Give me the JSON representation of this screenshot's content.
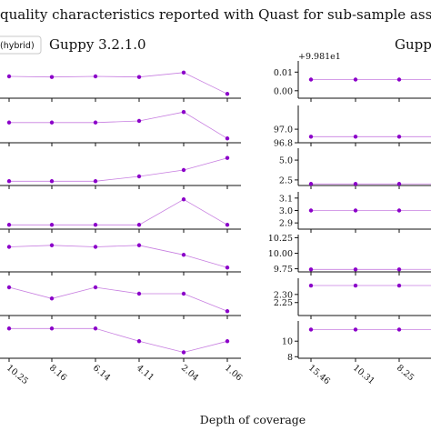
{
  "chart_data": {
    "type": "line",
    "title": "quality characteristics reported with Quast for sub-sample assem",
    "xlabel": "Depth of coverage",
    "legend": {
      "label": "(hybrid)",
      "placement": "top-left"
    },
    "colors": {
      "line": "#c77ee0",
      "marker": "#8b00c9",
      "axis": "#111111",
      "background": "#ffffff"
    },
    "panels": [
      {
        "title": "Guppy 3.2.1.0",
        "x_ticks": [
          "10.25",
          "8.16",
          "6.14",
          "4.11",
          "2.04",
          "1.06"
        ],
        "rows": [
          {
            "values": [
              0.6,
              0.58,
              0.6,
              0.58,
              0.72,
              0.05
            ],
            "y_ticks": []
          },
          {
            "values": [
              0.55,
              0.55,
              0.55,
              0.6,
              0.88,
              0.05
            ],
            "y_ticks": []
          },
          {
            "values": [
              0.05,
              0.05,
              0.05,
              0.2,
              0.4,
              0.78
            ],
            "y_ticks": []
          },
          {
            "values": [
              0.05,
              0.05,
              0.05,
              0.05,
              0.85,
              0.05
            ],
            "y_ticks": []
          },
          {
            "values": [
              0.7,
              0.75,
              0.7,
              0.75,
              0.45,
              0.05
            ],
            "y_ticks": []
          },
          {
            "values": [
              0.8,
              0.45,
              0.8,
              0.6,
              0.6,
              0.05
            ],
            "y_ticks": []
          },
          {
            "values": [
              0.85,
              0.85,
              0.85,
              0.45,
              0.1,
              0.45
            ],
            "y_ticks": []
          }
        ]
      },
      {
        "title": "Gupp",
        "x_ticks": [
          "15.46",
          "10.31",
          "8.25"
        ],
        "rows": [
          {
            "offset": "+9.981e1",
            "ylim": [
              -0.004,
              0.016
            ],
            "values": [
              0.006,
              0.006,
              0.006
            ],
            "y_ticks": [
              {
                "v": 0.01,
                "label": "0.01"
              },
              {
                "v": 0.0,
                "label": "0.00"
              }
            ]
          },
          {
            "ylim": [
              96.8,
              97.35
            ],
            "values": [
              96.89,
              96.89,
              96.89
            ],
            "y_ticks": [
              {
                "v": 97.0,
                "label": "97.0"
              },
              {
                "v": 96.8,
                "label": "96.8"
              }
            ]
          },
          {
            "ylim": [
              1.8,
              6.5
            ],
            "values": [
              2.0,
              2.0,
              2.0
            ],
            "y_ticks": [
              {
                "v": 5.0,
                "label": "5.0"
              },
              {
                "v": 2.5,
                "label": "2.5"
              }
            ]
          },
          {
            "ylim": [
              2.85,
              3.15
            ],
            "values": [
              3.0,
              3.0,
              3.0
            ],
            "y_ticks": [
              {
                "v": 3.1,
                "label": "3.1"
              },
              {
                "v": 3.0,
                "label": "3.0"
              },
              {
                "v": 2.9,
                "label": "2.9"
              }
            ]
          },
          {
            "ylim": [
              9.7,
              10.3
            ],
            "values": [
              9.74,
              9.74,
              9.74
            ],
            "y_ticks": [
              {
                "v": 10.25,
                "label": "10.25"
              },
              {
                "v": 10.0,
                "label": "10.00"
              },
              {
                "v": 9.75,
                "label": "9.75"
              }
            ]
          },
          {
            "ylim": [
              2.17,
              2.4
            ],
            "values": [
              2.355,
              2.355,
              2.355
            ],
            "y_ticks": [
              {
                "v": 2.3,
                "label": "2.30"
              },
              {
                "v": 2.25,
                "label": "2.25"
              }
            ]
          },
          {
            "ylim": [
              7.8,
              12.6
            ],
            "values": [
              11.5,
              11.5,
              11.5
            ],
            "y_ticks": [
              {
                "v": 10,
                "label": "10"
              },
              {
                "v": 8,
                "label": "8"
              }
            ]
          }
        ]
      }
    ]
  }
}
